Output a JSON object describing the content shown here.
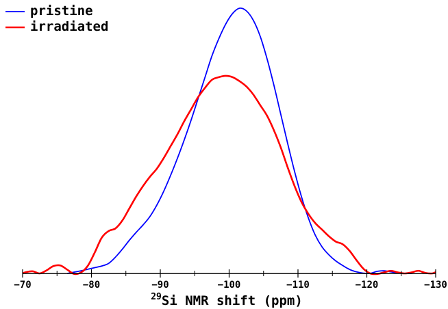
{
  "chart_data": {
    "type": "line",
    "xlabel": {
      "superscript": "29",
      "main": "Si NMR shift (ppm)"
    },
    "xlim": [
      -70,
      -130
    ],
    "x_ticks": [
      "−70",
      "−80",
      "−90",
      "−100",
      "−110",
      "−120",
      "−130"
    ],
    "x_tick_values": [
      -70,
      -80,
      -90,
      -100,
      -110,
      -120,
      -130
    ],
    "y_axis_shown": false,
    "grid": false,
    "legend_placement": "top-left",
    "series": [
      {
        "name": "pristine",
        "color": "#0000ff",
        "points": [
          [
            -76.5,
            0.0
          ],
          [
            -77.5,
            0.005
          ],
          [
            -78.5,
            0.01
          ],
          [
            -79.5,
            0.016
          ],
          [
            -80.5,
            0.022
          ],
          [
            -81.5,
            0.028
          ],
          [
            -82.5,
            0.038
          ],
          [
            -83.5,
            0.062
          ],
          [
            -84.5,
            0.092
          ],
          [
            -85.5,
            0.125
          ],
          [
            -86.5,
            0.155
          ],
          [
            -87.5,
            0.183
          ],
          [
            -88.5,
            0.215
          ],
          [
            -89.5,
            0.258
          ],
          [
            -90.5,
            0.31
          ],
          [
            -91.5,
            0.37
          ],
          [
            -92.5,
            0.435
          ],
          [
            -93.5,
            0.505
          ],
          [
            -94.5,
            0.58
          ],
          [
            -95.5,
            0.66
          ],
          [
            -96.5,
            0.74
          ],
          [
            -97.5,
            0.82
          ],
          [
            -98.5,
            0.885
          ],
          [
            -99.5,
            0.94
          ],
          [
            -100.5,
            0.98
          ],
          [
            -101.5,
            1.0
          ],
          [
            -102.5,
            0.99
          ],
          [
            -103.5,
            0.955
          ],
          [
            -104.5,
            0.895
          ],
          [
            -105.5,
            0.81
          ],
          [
            -106.5,
            0.71
          ],
          [
            -107.5,
            0.6
          ],
          [
            -108.5,
            0.49
          ],
          [
            -109.5,
            0.385
          ],
          [
            -110.5,
            0.29
          ],
          [
            -111.5,
            0.21
          ],
          [
            -112.5,
            0.145
          ],
          [
            -113.5,
            0.1
          ],
          [
            -114.5,
            0.07
          ],
          [
            -115.5,
            0.047
          ],
          [
            -116.5,
            0.03
          ],
          [
            -117.5,
            0.015
          ],
          [
            -118.5,
            0.006
          ],
          [
            -119.5,
            0.001
          ],
          [
            -120.5,
            0.0
          ],
          [
            -121.5,
            0.008
          ],
          [
            -122.5,
            0.01
          ],
          [
            -123.5,
            0.006
          ],
          [
            -124.5,
            0.002
          ],
          [
            -125.5,
            0.0
          ],
          [
            -126.5,
            0.0
          ]
        ]
      },
      {
        "name": "irradiated",
        "color": "#ff0000",
        "points": [
          [
            -70.0,
            0.0
          ],
          [
            -70.5,
            0.005
          ],
          [
            -71.5,
            0.008
          ],
          [
            -72.5,
            0.0
          ],
          [
            -73.5,
            0.012
          ],
          [
            -74.5,
            0.028
          ],
          [
            -75.5,
            0.03
          ],
          [
            -76.5,
            0.014
          ],
          [
            -77.5,
            -0.002
          ],
          [
            -78.5,
            0.004
          ],
          [
            -79.5,
            0.03
          ],
          [
            -80.5,
            0.08
          ],
          [
            -81.5,
            0.135
          ],
          [
            -82.5,
            0.16
          ],
          [
            -83.5,
            0.17
          ],
          [
            -84.5,
            0.2
          ],
          [
            -85.5,
            0.245
          ],
          [
            -86.5,
            0.29
          ],
          [
            -87.5,
            0.33
          ],
          [
            -88.5,
            0.365
          ],
          [
            -89.5,
            0.395
          ],
          [
            -90.5,
            0.435
          ],
          [
            -91.5,
            0.48
          ],
          [
            -92.5,
            0.525
          ],
          [
            -93.5,
            0.575
          ],
          [
            -94.5,
            0.62
          ],
          [
            -95.5,
            0.665
          ],
          [
            -96.5,
            0.7
          ],
          [
            -97.5,
            0.73
          ],
          [
            -98.5,
            0.74
          ],
          [
            -99.5,
            0.745
          ],
          [
            -100.5,
            0.74
          ],
          [
            -101.5,
            0.725
          ],
          [
            -102.5,
            0.705
          ],
          [
            -103.5,
            0.675
          ],
          [
            -104.5,
            0.635
          ],
          [
            -105.5,
            0.595
          ],
          [
            -106.5,
            0.54
          ],
          [
            -107.5,
            0.475
          ],
          [
            -108.5,
            0.4
          ],
          [
            -109.5,
            0.33
          ],
          [
            -110.5,
            0.27
          ],
          [
            -111.5,
            0.225
          ],
          [
            -112.5,
            0.19
          ],
          [
            -113.5,
            0.165
          ],
          [
            -114.5,
            0.14
          ],
          [
            -115.5,
            0.12
          ],
          [
            -116.5,
            0.11
          ],
          [
            -117.5,
            0.085
          ],
          [
            -118.5,
            0.05
          ],
          [
            -119.5,
            0.018
          ],
          [
            -120.5,
            0.0
          ],
          [
            -121.5,
            -0.002
          ],
          [
            -122.5,
            0.004
          ],
          [
            -123.5,
            0.01
          ],
          [
            -124.5,
            0.004
          ],
          [
            -125.5,
            0.0
          ],
          [
            -126.5,
            0.004
          ],
          [
            -127.5,
            0.01
          ],
          [
            -128.5,
            0.002
          ],
          [
            -129.5,
            0.0
          ],
          [
            -130.0,
            0.005
          ]
        ]
      }
    ]
  }
}
